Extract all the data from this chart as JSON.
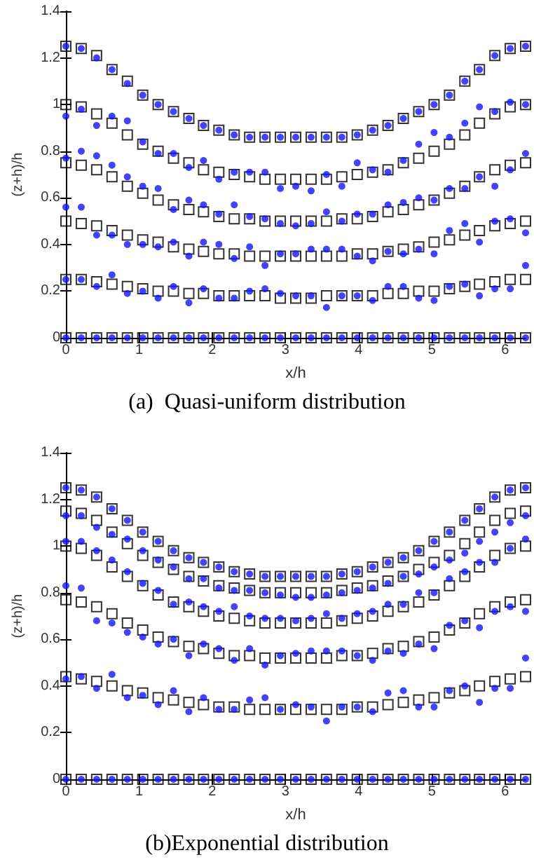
{
  "chart_data": [
    {
      "type": "scatter",
      "title": "(a)  Quasi-uniform distribution",
      "xlabel": "x/h",
      "ylabel": "(z+h)/h",
      "x": [
        0,
        0.21,
        0.42,
        0.63,
        0.84,
        1.05,
        1.26,
        1.47,
        1.68,
        1.88,
        2.09,
        2.3,
        2.51,
        2.72,
        2.93,
        3.14,
        3.35,
        3.56,
        3.77,
        3.98,
        4.19,
        4.4,
        4.61,
        4.82,
        5.03,
        5.24,
        5.45,
        5.65,
        5.86,
        6.07,
        6.28
      ],
      "xlim": [
        0,
        6.28
      ],
      "xticks": [
        0,
        1,
        2,
        3,
        4,
        5,
        6
      ],
      "ylim": [
        0,
        1.4
      ],
      "yticks": [
        0,
        0.2,
        0.4,
        0.6,
        0.8,
        1,
        1.2,
        1.4
      ],
      "series": [
        {
          "color": "#000000",
          "marker": "square",
          "values": [
            1.25,
            1.24,
            1.21,
            1.15,
            1.1,
            1.04,
            1.0,
            0.97,
            0.94,
            0.91,
            0.89,
            0.87,
            0.86,
            0.86,
            0.86,
            0.86,
            0.86,
            0.86,
            0.86,
            0.87,
            0.89,
            0.91,
            0.94,
            0.97,
            1.0,
            1.04,
            1.1,
            1.15,
            1.21,
            1.24,
            1.25
          ]
        },
        {
          "color": "#000000",
          "marker": "square",
          "values": [
            1.0,
            0.99,
            0.96,
            0.92,
            0.87,
            0.83,
            0.8,
            0.77,
            0.75,
            0.72,
            0.71,
            0.7,
            0.69,
            0.68,
            0.68,
            0.68,
            0.68,
            0.68,
            0.69,
            0.7,
            0.71,
            0.72,
            0.75,
            0.77,
            0.8,
            0.83,
            0.87,
            0.92,
            0.96,
            0.99,
            1.0
          ]
        },
        {
          "color": "#000000",
          "marker": "square",
          "values": [
            0.75,
            0.74,
            0.72,
            0.69,
            0.65,
            0.62,
            0.59,
            0.57,
            0.55,
            0.54,
            0.52,
            0.51,
            0.51,
            0.5,
            0.5,
            0.5,
            0.5,
            0.5,
            0.51,
            0.51,
            0.52,
            0.54,
            0.55,
            0.57,
            0.59,
            0.62,
            0.65,
            0.69,
            0.72,
            0.74,
            0.75
          ]
        },
        {
          "color": "#000000",
          "marker": "square",
          "values": [
            0.5,
            0.49,
            0.48,
            0.46,
            0.44,
            0.42,
            0.41,
            0.39,
            0.38,
            0.37,
            0.36,
            0.36,
            0.35,
            0.35,
            0.35,
            0.35,
            0.35,
            0.35,
            0.35,
            0.36,
            0.36,
            0.37,
            0.38,
            0.39,
            0.41,
            0.42,
            0.44,
            0.46,
            0.48,
            0.49,
            0.5
          ]
        },
        {
          "color": "#000000",
          "marker": "square",
          "values": [
            0.25,
            0.25,
            0.24,
            0.23,
            0.22,
            0.21,
            0.2,
            0.2,
            0.19,
            0.19,
            0.18,
            0.18,
            0.18,
            0.18,
            0.17,
            0.17,
            0.17,
            0.18,
            0.18,
            0.18,
            0.18,
            0.19,
            0.19,
            0.2,
            0.2,
            0.21,
            0.22,
            0.23,
            0.24,
            0.25,
            0.25
          ]
        },
        {
          "color": "#000000",
          "marker": "square",
          "values": [
            0,
            0,
            0,
            0,
            0,
            0,
            0,
            0,
            0,
            0,
            0,
            0,
            0,
            0,
            0,
            0,
            0,
            0,
            0,
            0,
            0,
            0,
            0,
            0,
            0,
            0,
            0,
            0,
            0,
            0,
            0
          ]
        },
        {
          "color": "#1414ff",
          "marker": "circle",
          "values": [
            1.25,
            1.24,
            1.2,
            1.15,
            1.09,
            1.04,
            1.0,
            0.97,
            0.94,
            0.91,
            0.89,
            0.87,
            0.86,
            0.86,
            0.86,
            0.86,
            0.86,
            0.86,
            0.86,
            0.87,
            0.89,
            0.91,
            0.94,
            0.97,
            1.0,
            1.04,
            1.1,
            1.15,
            1.21,
            1.24,
            1.25
          ]
        },
        {
          "color": "#1414ff",
          "marker": "circle",
          "values": [
            0.95,
            0.98,
            0.91,
            0.95,
            0.93,
            0.84,
            0.79,
            0.79,
            0.73,
            0.76,
            0.68,
            0.71,
            0.71,
            0.71,
            0.64,
            0.65,
            0.63,
            0.7,
            0.65,
            0.75,
            0.72,
            0.71,
            0.76,
            0.83,
            0.88,
            0.86,
            0.92,
            0.99,
            0.97,
            1.01,
            1.0
          ]
        },
        {
          "color": "#1414ff",
          "marker": "circle",
          "values": [
            0.77,
            0.8,
            0.78,
            0.74,
            0.69,
            0.65,
            0.64,
            0.55,
            0.59,
            0.57,
            0.53,
            0.57,
            0.52,
            0.51,
            0.49,
            0.48,
            0.49,
            0.54,
            0.5,
            0.53,
            0.53,
            0.57,
            0.58,
            0.6,
            0.59,
            0.64,
            0.64,
            0.69,
            0.65,
            0.72,
            0.79
          ]
        },
        {
          "color": "#1414ff",
          "marker": "circle",
          "values": [
            0.56,
            0.56,
            0.44,
            0.44,
            0.4,
            0.4,
            0.39,
            0.41,
            0.35,
            0.41,
            0.4,
            0.34,
            0.39,
            0.31,
            0.36,
            0.36,
            0.38,
            0.38,
            0.38,
            0.35,
            0.33,
            0.37,
            0.36,
            0.38,
            0.36,
            0.46,
            0.49,
            0.41,
            0.5,
            0.51,
            0.45
          ]
        },
        {
          "color": "#1414ff",
          "marker": "circle",
          "values": [
            0.25,
            0.25,
            0.22,
            0.27,
            0.19,
            0.2,
            0.17,
            0.22,
            0.15,
            0.21,
            0.17,
            0.17,
            0.2,
            0.21,
            0.19,
            0.18,
            0.18,
            0.13,
            0.18,
            0.18,
            0.16,
            0.22,
            0.22,
            0.17,
            0.16,
            0.22,
            0.23,
            0.18,
            0.21,
            0.21,
            0.31
          ]
        },
        {
          "color": "#1414ff",
          "marker": "circle",
          "values": [
            0,
            0,
            0,
            0,
            0,
            0,
            0,
            0,
            0,
            0,
            0,
            0,
            0,
            0,
            0,
            0,
            0,
            0,
            0,
            0,
            0,
            0,
            0,
            0,
            0,
            0,
            0,
            0,
            0,
            0,
            0
          ]
        }
      ]
    },
    {
      "type": "scatter",
      "title": "(b)Exponential distribution",
      "xlabel": "x/h",
      "ylabel": "(z+h)/h",
      "x": [
        0,
        0.21,
        0.42,
        0.63,
        0.84,
        1.05,
        1.26,
        1.47,
        1.68,
        1.88,
        2.09,
        2.3,
        2.51,
        2.72,
        2.93,
        3.14,
        3.35,
        3.56,
        3.77,
        3.98,
        4.19,
        4.4,
        4.61,
        4.82,
        5.03,
        5.24,
        5.45,
        5.65,
        5.86,
        6.07,
        6.28
      ],
      "xlim": [
        0,
        6.28
      ],
      "xticks": [
        0,
        1,
        2,
        3,
        4,
        5,
        6
      ],
      "ylim": [
        0,
        1.4
      ],
      "yticks": [
        0,
        0.2,
        0.4,
        0.6,
        0.8,
        1,
        1.2,
        1.4
      ],
      "series": [
        {
          "color": "#000000",
          "marker": "square",
          "values": [
            1.25,
            1.24,
            1.21,
            1.16,
            1.11,
            1.06,
            1.02,
            0.98,
            0.95,
            0.93,
            0.91,
            0.89,
            0.88,
            0.87,
            0.87,
            0.87,
            0.87,
            0.87,
            0.88,
            0.89,
            0.91,
            0.93,
            0.95,
            0.98,
            1.02,
            1.06,
            1.11,
            1.16,
            1.21,
            1.24,
            1.25
          ]
        },
        {
          "color": "#000000",
          "marker": "square",
          "values": [
            1.15,
            1.14,
            1.11,
            1.06,
            1.01,
            0.96,
            0.93,
            0.9,
            0.87,
            0.85,
            0.83,
            0.82,
            0.81,
            0.8,
            0.8,
            0.8,
            0.8,
            0.8,
            0.81,
            0.82,
            0.83,
            0.85,
            0.87,
            0.9,
            0.93,
            0.96,
            1.01,
            1.06,
            1.11,
            1.14,
            1.15
          ]
        },
        {
          "color": "#000000",
          "marker": "square",
          "values": [
            1.0,
            0.99,
            0.96,
            0.91,
            0.87,
            0.83,
            0.79,
            0.76,
            0.74,
            0.72,
            0.7,
            0.69,
            0.68,
            0.67,
            0.67,
            0.67,
            0.67,
            0.67,
            0.68,
            0.69,
            0.7,
            0.72,
            0.74,
            0.76,
            0.79,
            0.83,
            0.87,
            0.91,
            0.96,
            0.99,
            1.0
          ]
        },
        {
          "color": "#000000",
          "marker": "square",
          "values": [
            0.77,
            0.76,
            0.74,
            0.71,
            0.67,
            0.64,
            0.61,
            0.59,
            0.57,
            0.56,
            0.54,
            0.53,
            0.53,
            0.52,
            0.52,
            0.52,
            0.52,
            0.52,
            0.53,
            0.53,
            0.54,
            0.56,
            0.57,
            0.59,
            0.61,
            0.64,
            0.67,
            0.71,
            0.74,
            0.76,
            0.77
          ]
        },
        {
          "color": "#000000",
          "marker": "square",
          "values": [
            0.44,
            0.43,
            0.42,
            0.4,
            0.38,
            0.37,
            0.35,
            0.34,
            0.33,
            0.32,
            0.31,
            0.31,
            0.3,
            0.3,
            0.3,
            0.3,
            0.3,
            0.3,
            0.3,
            0.31,
            0.31,
            0.32,
            0.33,
            0.34,
            0.35,
            0.37,
            0.38,
            0.4,
            0.42,
            0.43,
            0.44
          ]
        },
        {
          "color": "#000000",
          "marker": "square",
          "values": [
            0,
            0,
            0,
            0,
            0,
            0,
            0,
            0,
            0,
            0,
            0,
            0,
            0,
            0,
            0,
            0,
            0,
            0,
            0,
            0,
            0,
            0,
            0,
            0,
            0,
            0,
            0,
            0,
            0,
            0,
            0
          ]
        },
        {
          "color": "#1414ff",
          "marker": "circle",
          "values": [
            1.25,
            1.24,
            1.21,
            1.16,
            1.11,
            1.06,
            1.02,
            0.98,
            0.95,
            0.93,
            0.91,
            0.89,
            0.88,
            0.87,
            0.87,
            0.87,
            0.87,
            0.87,
            0.88,
            0.89,
            0.91,
            0.93,
            0.95,
            0.98,
            1.02,
            1.06,
            1.11,
            1.16,
            1.21,
            1.24,
            1.25
          ]
        },
        {
          "color": "#1414ff",
          "marker": "circle",
          "values": [
            1.13,
            1.13,
            1.08,
            1.05,
            1.03,
            0.98,
            0.94,
            0.91,
            0.86,
            0.86,
            0.82,
            0.81,
            0.81,
            0.8,
            0.79,
            0.78,
            0.78,
            0.79,
            0.8,
            0.81,
            0.82,
            0.84,
            0.87,
            0.88,
            0.91,
            0.94,
            0.97,
            1.02,
            1.06,
            1.1,
            1.13
          ]
        },
        {
          "color": "#1414ff",
          "marker": "circle",
          "values": [
            1.02,
            1.02,
            0.98,
            0.94,
            0.89,
            0.84,
            0.81,
            0.75,
            0.76,
            0.74,
            0.72,
            0.74,
            0.7,
            0.69,
            0.69,
            0.68,
            0.69,
            0.71,
            0.69,
            0.71,
            0.72,
            0.75,
            0.75,
            0.8,
            0.8,
            0.86,
            0.89,
            0.93,
            0.93,
            0.99,
            1.03
          ]
        },
        {
          "color": "#1414ff",
          "marker": "circle",
          "values": [
            0.83,
            0.82,
            0.68,
            0.67,
            0.63,
            0.61,
            0.58,
            0.6,
            0.53,
            0.58,
            0.56,
            0.51,
            0.56,
            0.49,
            0.53,
            0.54,
            0.55,
            0.55,
            0.55,
            0.53,
            0.51,
            0.55,
            0.54,
            0.58,
            0.56,
            0.66,
            0.68,
            0.65,
            0.72,
            0.74,
            0.72
          ]
        },
        {
          "color": "#1414ff",
          "marker": "circle",
          "values": [
            0.43,
            0.44,
            0.39,
            0.45,
            0.35,
            0.36,
            0.32,
            0.38,
            0.29,
            0.35,
            0.3,
            0.3,
            0.34,
            0.35,
            0.3,
            0.32,
            0.31,
            0.25,
            0.31,
            0.31,
            0.29,
            0.37,
            0.38,
            0.31,
            0.31,
            0.38,
            0.4,
            0.33,
            0.39,
            0.39,
            0.52
          ]
        },
        {
          "color": "#1414ff",
          "marker": "circle",
          "values": [
            0,
            0,
            0,
            0,
            0,
            0,
            0,
            0,
            0,
            0,
            0,
            0,
            0,
            0,
            0,
            0,
            0,
            0,
            0,
            0,
            0,
            0,
            0,
            0,
            0,
            0,
            0,
            0,
            0,
            0,
            0
          ]
        }
      ]
    }
  ]
}
